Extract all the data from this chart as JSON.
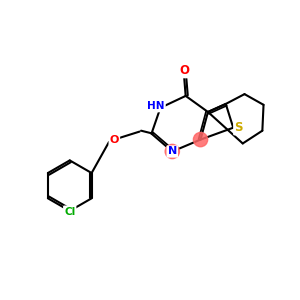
{
  "bg_color": "#ffffff",
  "atom_colors": {
    "C": "#000000",
    "N": "#0000ff",
    "O": "#ff0000",
    "S": "#ccaa00",
    "Cl": "#00aa00",
    "NH": "#0000ff"
  },
  "aromatic_highlight": "#ff6666",
  "bond_color": "#000000",
  "bond_width": 1.5
}
